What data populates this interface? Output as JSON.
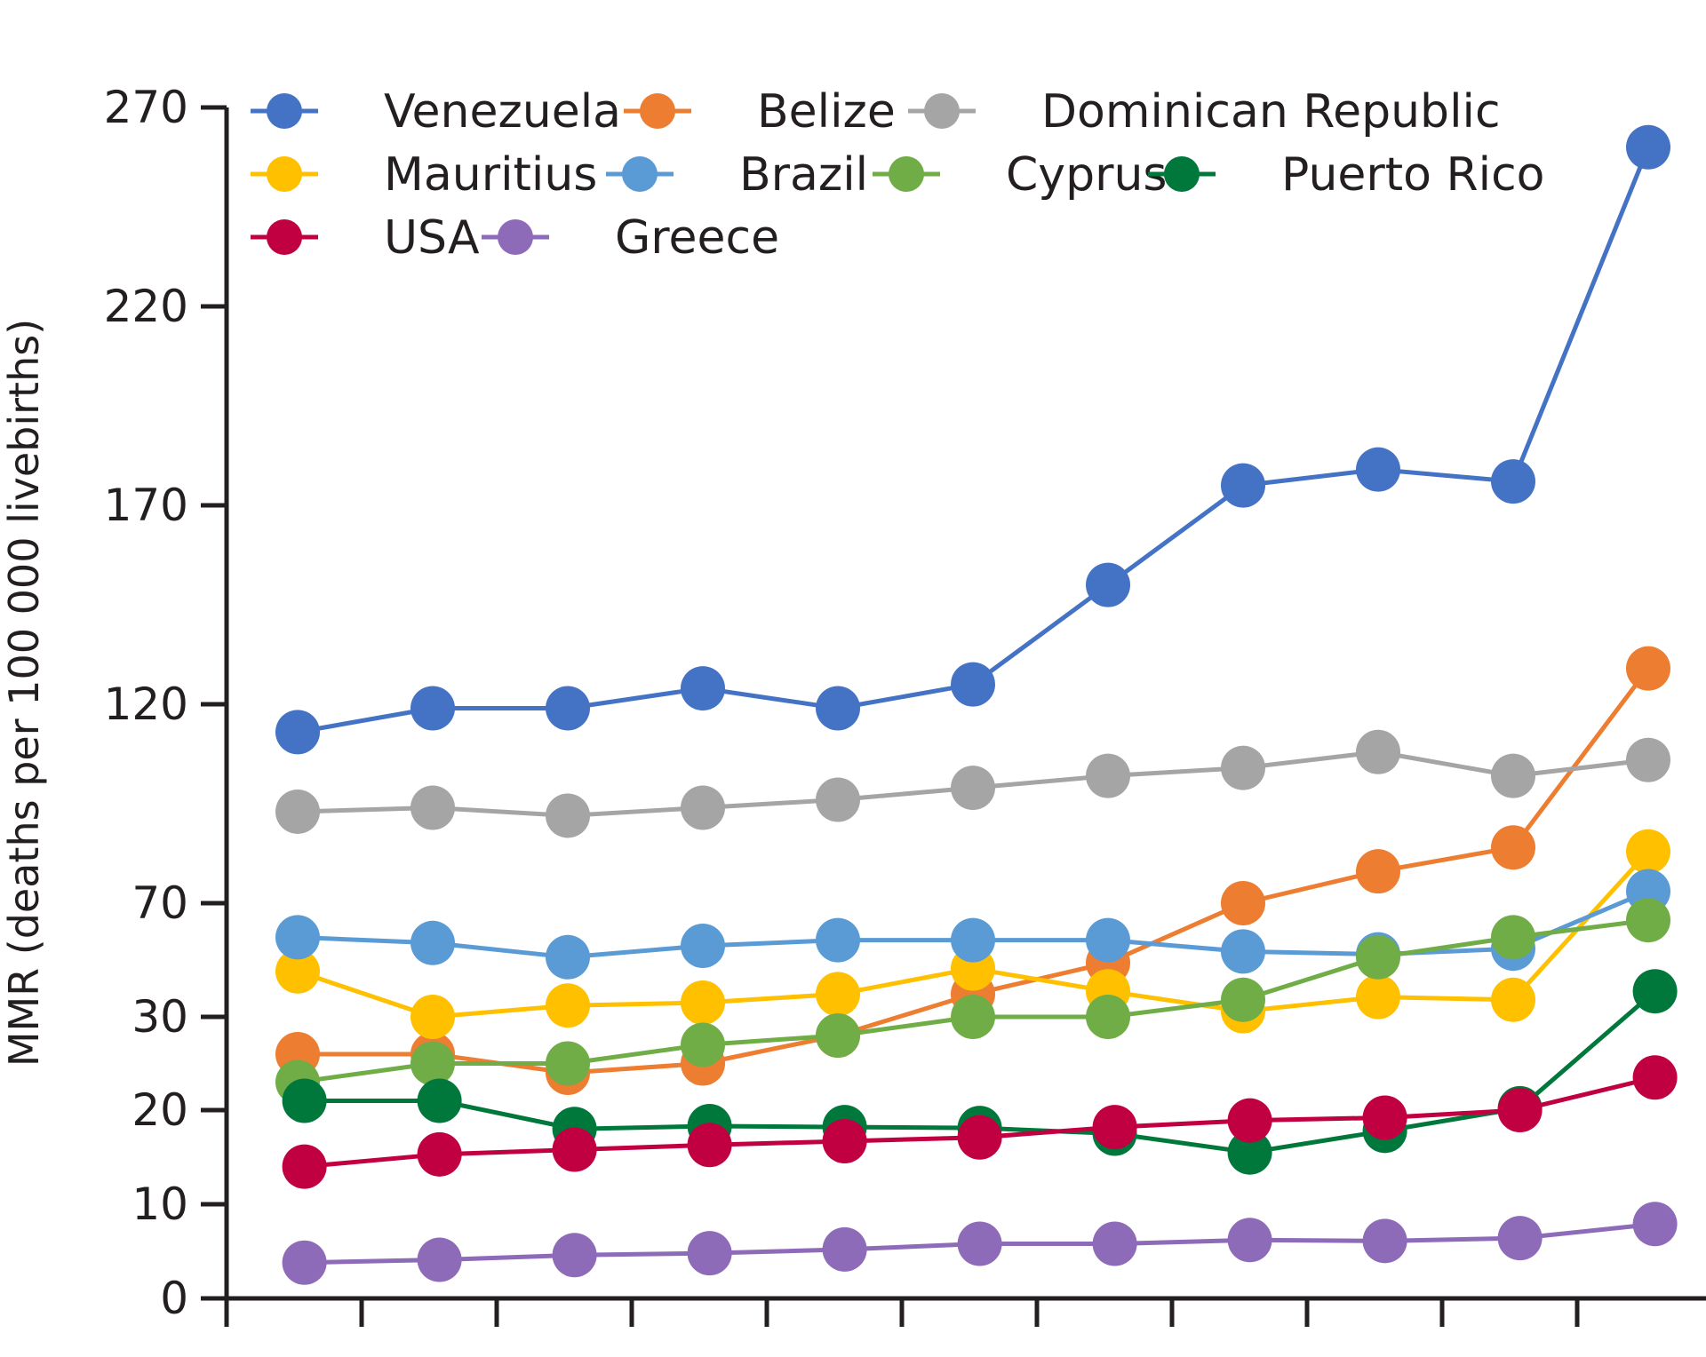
{
  "chart_data": {
    "type": "line",
    "title": "",
    "xlabel": "",
    "ylabel": "MMR (deaths per 100 000 livebirths)",
    "yticks": [
      "0",
      "10",
      "20",
      "30",
      "70",
      "120",
      "170",
      "220",
      "270"
    ],
    "x_tick_count": 11,
    "x": [
      1,
      2,
      3,
      4,
      5,
      6,
      7,
      8,
      9,
      10,
      11
    ],
    "legend_position": "top-left",
    "series": [
      {
        "name": "Venezuela",
        "color": "#4472c4",
        "values": [
          113,
          119,
          119,
          124,
          119,
          125,
          150,
          175,
          179,
          176,
          260
        ]
      },
      {
        "name": "Belize",
        "color": "#ed7d31",
        "values": [
          26,
          26,
          24,
          25,
          28,
          38,
          49,
          70,
          78,
          84,
          129
        ]
      },
      {
        "name": "Dominican Republic",
        "color": "#a5a5a5",
        "values": [
          93,
          94,
          92,
          94,
          96,
          99,
          102,
          104,
          108,
          102,
          106
        ]
      },
      {
        "name": "Mauritius",
        "color": "#ffc000",
        "values": [
          46,
          30,
          34,
          35,
          38,
          47,
          39,
          32,
          37,
          36,
          83
        ]
      },
      {
        "name": "Brazil",
        "color": "#5b9bd5",
        "values": [
          58,
          56,
          51,
          55,
          57,
          57,
          57,
          53,
          52,
          54,
          73
        ]
      },
      {
        "name": "Cyprus",
        "color": "#70ad47",
        "values": [
          23,
          25,
          25,
          27,
          28,
          30,
          30,
          36,
          51,
          58,
          64
        ]
      },
      {
        "name": "Puerto Rico",
        "color": "#00783c",
        "values": [
          21,
          21,
          18,
          18.3,
          18.2,
          18.1,
          17.5,
          15.5,
          17.8,
          20.2,
          39
        ]
      },
      {
        "name": "USA",
        "color": "#c00040",
        "values": [
          14,
          15.3,
          15.8,
          16.3,
          16.7,
          17.1,
          18.2,
          18.9,
          19.2,
          20,
          23.5
        ]
      },
      {
        "name": "Greece",
        "color": "#8e6bb8",
        "values": [
          3.8,
          4.1,
          4.6,
          4.8,
          5.2,
          5.8,
          5.8,
          6.2,
          6.1,
          6.4,
          7.9
        ]
      }
    ]
  }
}
